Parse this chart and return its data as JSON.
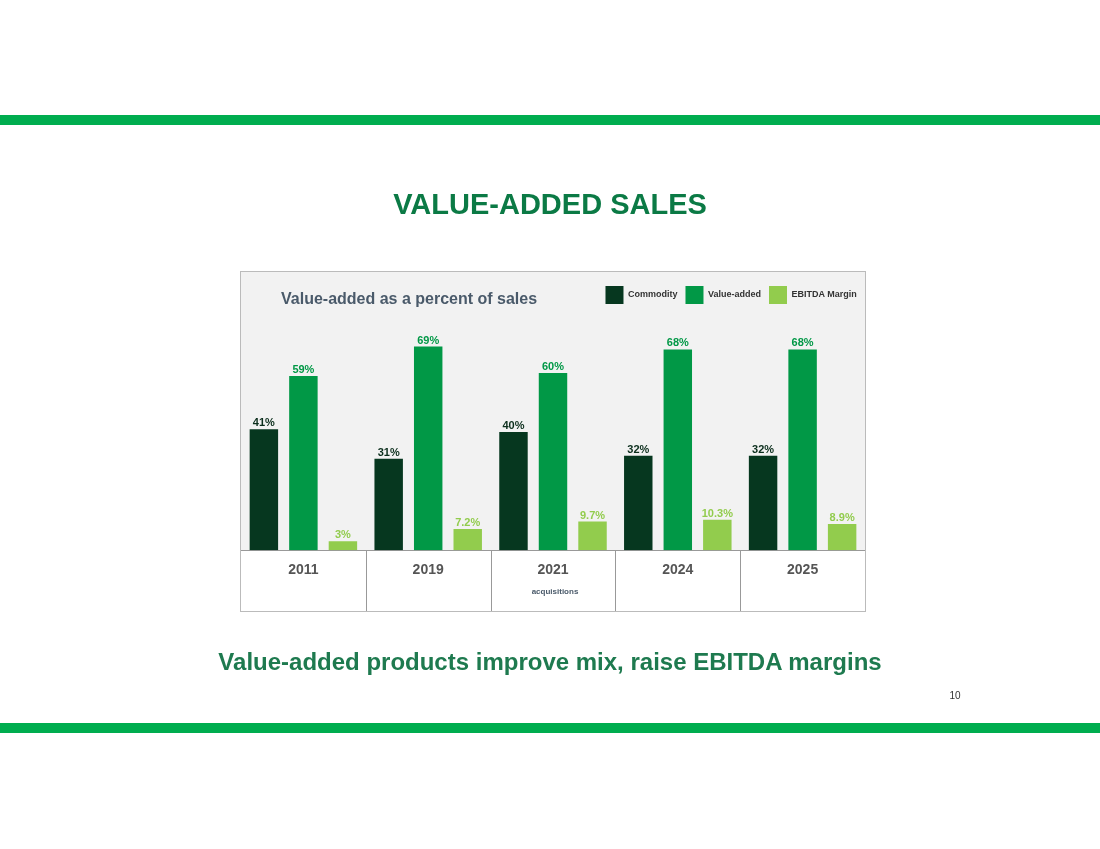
{
  "chart_data": {
    "type": "bar",
    "title": "VALUE-ADDED SALES",
    "subtitle": "Value-added as a percent of sales",
    "categories": [
      "2011",
      "2019",
      "2021",
      "2024",
      "2025"
    ],
    "series": [
      {
        "name": "Commodity",
        "color": "#06371f",
        "values": [
          41,
          31,
          40,
          32,
          32
        ],
        "value_labels": [
          "41%",
          "31%",
          "40%",
          "32%",
          "32%"
        ]
      },
      {
        "name": "Value-added",
        "color": "#019846",
        "values": [
          59,
          69,
          60,
          68,
          68
        ],
        "value_labels": [
          "59%",
          "69%",
          "60%",
          "68%",
          "68%"
        ]
      },
      {
        "name": "EBITDA Margin",
        "color": "#92cc4d",
        "values": [
          3,
          7.2,
          9.7,
          10.3,
          8.9
        ],
        "value_labels": [
          "3%",
          "7.2%",
          "9.7%",
          "10.3%",
          "8.9%"
        ]
      }
    ],
    "legend": "top right",
    "grid": false,
    "annotations": [
      "acquisitions",
      "Value-added products improve mix, raise EBITDA margins",
      "10"
    ]
  }
}
